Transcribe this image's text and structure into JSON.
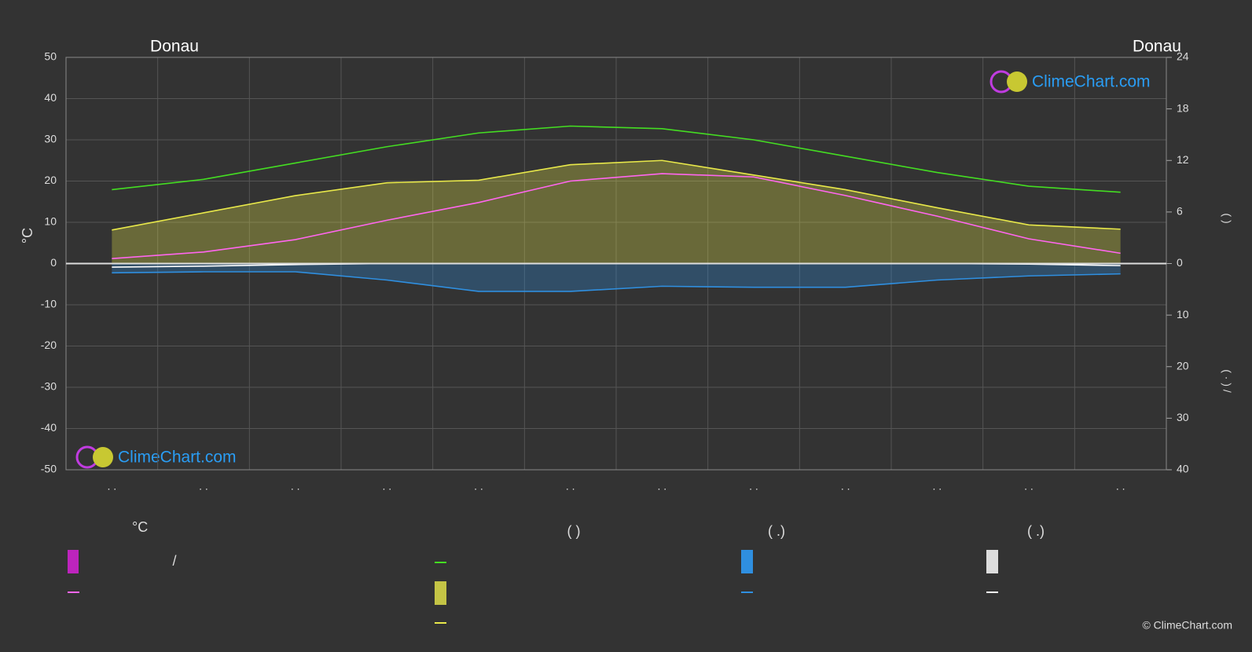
{
  "chart_data": {
    "type": "line",
    "title": "Donau",
    "title_right": "Donau",
    "y_label": "°C",
    "sun_axis_label": "(          )",
    "precip_axis_label": "(  ·  )      /",
    "categories": [
      ". .",
      ". .",
      ". .",
      ". .",
      ". .",
      ". .",
      ". .",
      ". .",
      ". .",
      ". .",
      ". .",
      ". ."
    ],
    "ylim": [
      -50,
      50
    ],
    "yticks": [
      -50,
      -40,
      -30,
      -20,
      -10,
      0,
      10,
      20,
      30,
      40,
      50
    ],
    "sun_axis": {
      "lim": [
        0,
        24
      ],
      "ticks": [
        0,
        6,
        12,
        18,
        24
      ]
    },
    "precip_axis": {
      "lim": [
        0,
        40
      ],
      "ticks": [
        10,
        20,
        30,
        40
      ]
    },
    "grid": true,
    "series": [
      {
        "color": "#44dd22",
        "axis": "sun",
        "values": [
          8.6,
          9.8,
          11.7,
          13.6,
          15.2,
          16.0,
          15.7,
          14.4,
          12.5,
          10.6,
          9.0,
          8.3
        ]
      },
      {
        "color": "#e8e84a",
        "axis": "sun",
        "area": true,
        "values": [
          3.9,
          5.9,
          7.9,
          9.4,
          9.7,
          11.5,
          12.0,
          10.3,
          8.6,
          6.5,
          4.5,
          4.0
        ]
      },
      {
        "color": "#ff66ee",
        "axis": "temp",
        "values": [
          1.2,
          2.8,
          5.8,
          10.5,
          14.8,
          20.0,
          21.8,
          21.0,
          16.5,
          11.5,
          6.0,
          2.5
        ]
      },
      {
        "color": "#2f8fe0",
        "axis": "precip",
        "area": true,
        "values": [
          1.8,
          1.6,
          1.6,
          3.2,
          5.4,
          5.4,
          4.4,
          4.6,
          4.6,
          3.2,
          2.4,
          2.0
        ]
      },
      {
        "color": "#ffffff",
        "axis": "precip",
        "values": [
          0.7,
          0.5,
          0.2,
          0,
          0,
          0,
          0,
          0,
          0,
          0,
          0.1,
          0.4
        ]
      }
    ],
    "legend_headings": [
      "°C",
      "(          )",
      "(    .)",
      "(    .)"
    ],
    "legend_note": "/",
    "watermarks": [
      "ClimeChart.com",
      "ClimeChart.com"
    ],
    "copyright": "© ClimeChart.com"
  }
}
